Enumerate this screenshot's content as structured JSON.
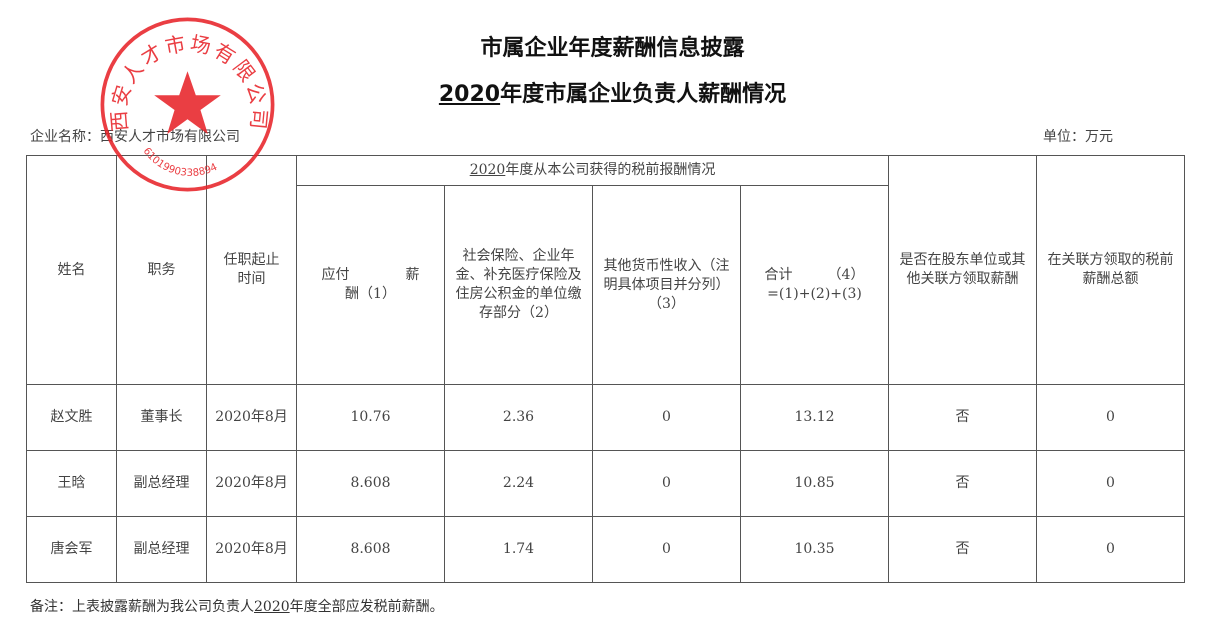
{
  "header": {
    "title": "市属企业年度薪酬信息披露",
    "subtitle_year": "2020",
    "subtitle_rest": "年度市属企业负责人薪酬情况",
    "company_label": "企业名称：西安人才市场有限公司",
    "unit_label": "单位：万元"
  },
  "stamp": {
    "text": "西安人才市场有限公司",
    "code": "6101990338894",
    "color": "#e8242a"
  },
  "table": {
    "columns": {
      "name": "姓名",
      "position": "职务",
      "tenure": "任职起止时间",
      "group_year": "2020",
      "group_rest": "年度从本公司获得的税前报酬情况",
      "salary": "应付　　　　薪酬（1）",
      "insurance": "社会保险、企业年金、补充医疗保险及住房公积金的单位缴存部分（2）",
      "other": "其他货币性收入（注明具体项目并分列）（3）",
      "total_a": "合计　　　（4）",
      "total_b": "=(1)+(2)+(3)",
      "shareholder": "是否在股东单位或其他关联方领取薪酬",
      "related_total": "在关联方领取的税前薪酬总额"
    },
    "rows": [
      {
        "name": "赵文胜",
        "position": "董事长",
        "tenure": "2020年8月",
        "salary": "10.76",
        "insurance": "2.36",
        "other": "0",
        "total": "13.12",
        "shareholder": "否",
        "related_total": "0"
      },
      {
        "name": "王晗",
        "position": "副总经理",
        "tenure": "2020年8月",
        "salary": "8.608",
        "insurance": "2.24",
        "other": "0",
        "total": "10.85",
        "shareholder": "否",
        "related_total": "0"
      },
      {
        "name": "唐会军",
        "position": "副总经理",
        "tenure": "2020年8月",
        "salary": "8.608",
        "insurance": "1.74",
        "other": "0",
        "total": "10.35",
        "shareholder": "否",
        "related_total": "0"
      }
    ]
  },
  "footer": {
    "note_prefix": "备注：上表披露薪酬为我公司负责人",
    "note_year": "2020",
    "note_suffix": "年度全部应发税前薪酬。"
  }
}
